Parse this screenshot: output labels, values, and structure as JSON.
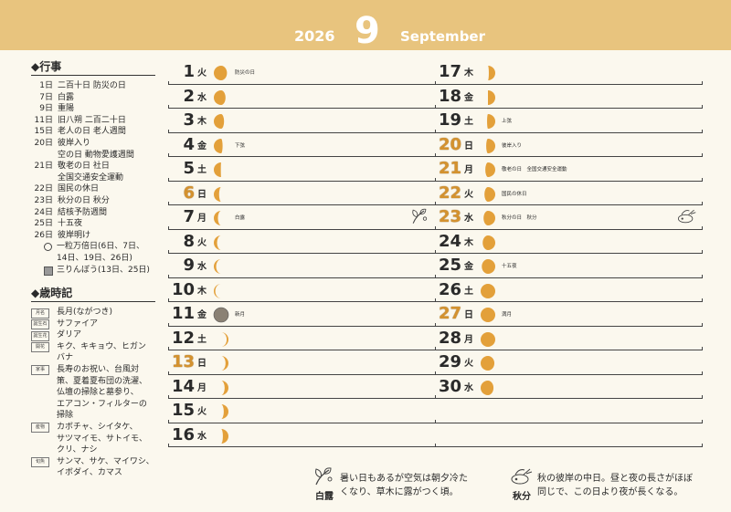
{
  "header": {
    "year": "2026",
    "month": "9",
    "month_en": "September"
  },
  "events": {
    "title": "◆行事",
    "items": [
      {
        "day": "1日",
        "text": "二百十日 防災の日"
      },
      {
        "day": "7日",
        "text": "白露"
      },
      {
        "day": "9日",
        "text": "重陽"
      },
      {
        "day": "11日",
        "text": "旧八朔 二百二十日"
      },
      {
        "day": "15日",
        "text": "老人の日 老人週間"
      },
      {
        "day": "20日",
        "text": "彼岸入り"
      },
      {
        "day": "",
        "text": "空の日 動物愛護週間"
      },
      {
        "day": "21日",
        "text": "敬老の日 社日"
      },
      {
        "day": "",
        "text": "全国交通安全運動"
      },
      {
        "day": "22日",
        "text": "国民の休日"
      },
      {
        "day": "23日",
        "text": "秋分の日 秋分"
      },
      {
        "day": "24日",
        "text": "結核予防週間"
      },
      {
        "day": "25日",
        "text": "十五夜"
      },
      {
        "day": "26日",
        "text": "彼岸明け"
      }
    ],
    "legend": [
      {
        "sym": "circle",
        "lines": [
          "一粒万倍日(6日、7日、",
          "14日、19日、26日)"
        ]
      },
      {
        "sym": "square",
        "lines": [
          "三りんぼう(13日、25日)"
        ]
      }
    ]
  },
  "saijiki": {
    "title": "◆歳時記",
    "items": [
      {
        "tag": "月名",
        "lines": [
          "長月(ながつき)"
        ]
      },
      {
        "tag": "誕生石",
        "lines": [
          "サファイア"
        ]
      },
      {
        "tag": "誕生花",
        "lines": [
          "ダリア"
        ]
      },
      {
        "tag": "開花",
        "lines": [
          "キク、キキョウ、ヒガン",
          "バナ"
        ]
      },
      {
        "tag": "家事",
        "lines": [
          "長寿のお祝い、台風対",
          "策、夏着夏布団の洗濯、",
          "仏壇の掃除と墓参り、",
          "エアコン・フィルターの",
          "掃除"
        ]
      },
      {
        "tag": "産物",
        "lines": [
          "カボチャ、シイタケ、",
          "サツマイモ、サトイモ、",
          "クリ、ナシ"
        ]
      },
      {
        "tag": "旬魚",
        "lines": [
          "サンマ、サケ、マイワシ、",
          "イボダイ、カマス"
        ]
      }
    ]
  },
  "days": [
    {
      "num": "1",
      "dow": "火",
      "phase": 0.55,
      "note": "防災の日",
      "holiday": false
    },
    {
      "num": "2",
      "dow": "水",
      "phase": 0.6,
      "note": "",
      "holiday": false
    },
    {
      "num": "3",
      "dow": "木",
      "phase": 0.65,
      "note": "",
      "holiday": false
    },
    {
      "num": "4",
      "dow": "金",
      "phase": 0.7,
      "note": "下弦",
      "holiday": false
    },
    {
      "num": "5",
      "dow": "土",
      "phase": 0.76,
      "note": "",
      "holiday": false
    },
    {
      "num": "6",
      "dow": "日",
      "phase": 0.82,
      "note": "",
      "holiday": true
    },
    {
      "num": "7",
      "dow": "月",
      "phase": 0.86,
      "note": "白露",
      "holiday": false,
      "icon": "hakuro"
    },
    {
      "num": "8",
      "dow": "火",
      "phase": 0.89,
      "note": "",
      "holiday": false
    },
    {
      "num": "9",
      "dow": "水",
      "phase": 0.92,
      "note": "",
      "holiday": false
    },
    {
      "num": "10",
      "dow": "木",
      "phase": 0.95,
      "note": "",
      "holiday": false
    },
    {
      "num": "11",
      "dow": "金",
      "phase": 0,
      "note": "新月",
      "holiday": false
    },
    {
      "num": "12",
      "dow": "土",
      "phase": 0.06,
      "note": "",
      "holiday": false
    },
    {
      "num": "13",
      "dow": "日",
      "phase": 0.1,
      "note": "",
      "holiday": true
    },
    {
      "num": "14",
      "dow": "月",
      "phase": 0.13,
      "note": "",
      "holiday": false
    },
    {
      "num": "15",
      "dow": "火",
      "phase": 0.16,
      "note": "",
      "holiday": false
    },
    {
      "num": "16",
      "dow": "水",
      "phase": 0.19,
      "note": "",
      "holiday": false
    },
    {
      "num": "17",
      "dow": "木",
      "phase": 0.22,
      "note": "",
      "holiday": false
    },
    {
      "num": "18",
      "dow": "金",
      "phase": 0.25,
      "note": "",
      "holiday": false
    },
    {
      "num": "19",
      "dow": "土",
      "phase": 0.28,
      "note": "上弦",
      "holiday": false
    },
    {
      "num": "20",
      "dow": "日",
      "phase": 0.31,
      "note": "彼岸入り",
      "holiday": true
    },
    {
      "num": "21",
      "dow": "月",
      "phase": 0.34,
      "note": "敬老の日　全国交通安全運動",
      "holiday": true
    },
    {
      "num": "22",
      "dow": "火",
      "phase": 0.37,
      "note": "国民の休日",
      "holiday": true
    },
    {
      "num": "23",
      "dow": "水",
      "phase": 0.4,
      "note": "秋分の日　秋分",
      "holiday": true,
      "icon": "shubun"
    },
    {
      "num": "24",
      "dow": "木",
      "phase": 0.43,
      "note": "",
      "holiday": false
    },
    {
      "num": "25",
      "dow": "金",
      "phase": 0.46,
      "note": "十五夜",
      "holiday": false
    },
    {
      "num": "26",
      "dow": "土",
      "phase": 0.5,
      "note": "",
      "holiday": false
    },
    {
      "num": "27",
      "dow": "日",
      "phase": 0.5,
      "note": "満月",
      "holiday": true
    },
    {
      "num": "28",
      "dow": "月",
      "phase": 0.5,
      "note": "",
      "holiday": false
    },
    {
      "num": "29",
      "dow": "火",
      "phase": 0.53,
      "note": "",
      "holiday": false
    },
    {
      "num": "30",
      "dow": "水",
      "phase": 0.56,
      "note": "",
      "holiday": false
    }
  ],
  "sekki": [
    {
      "name": "白露",
      "icon": "hakuro",
      "lines": [
        "暑い日もあるが空気は朝夕冷た",
        "くなり、草木に露がつく頃。"
      ]
    },
    {
      "name": "秋分",
      "icon": "shubun",
      "lines": [
        "秋の彼岸の中日。昼と夜の長さがほぼ",
        "同じで、この日より夜が長くなる。"
      ]
    }
  ],
  "colors": {
    "header": "#e8c47e",
    "moon": "#e3a03a",
    "new_moon": "#8a8174",
    "holiday": "#d4922f",
    "background": "#fbf8ee"
  }
}
